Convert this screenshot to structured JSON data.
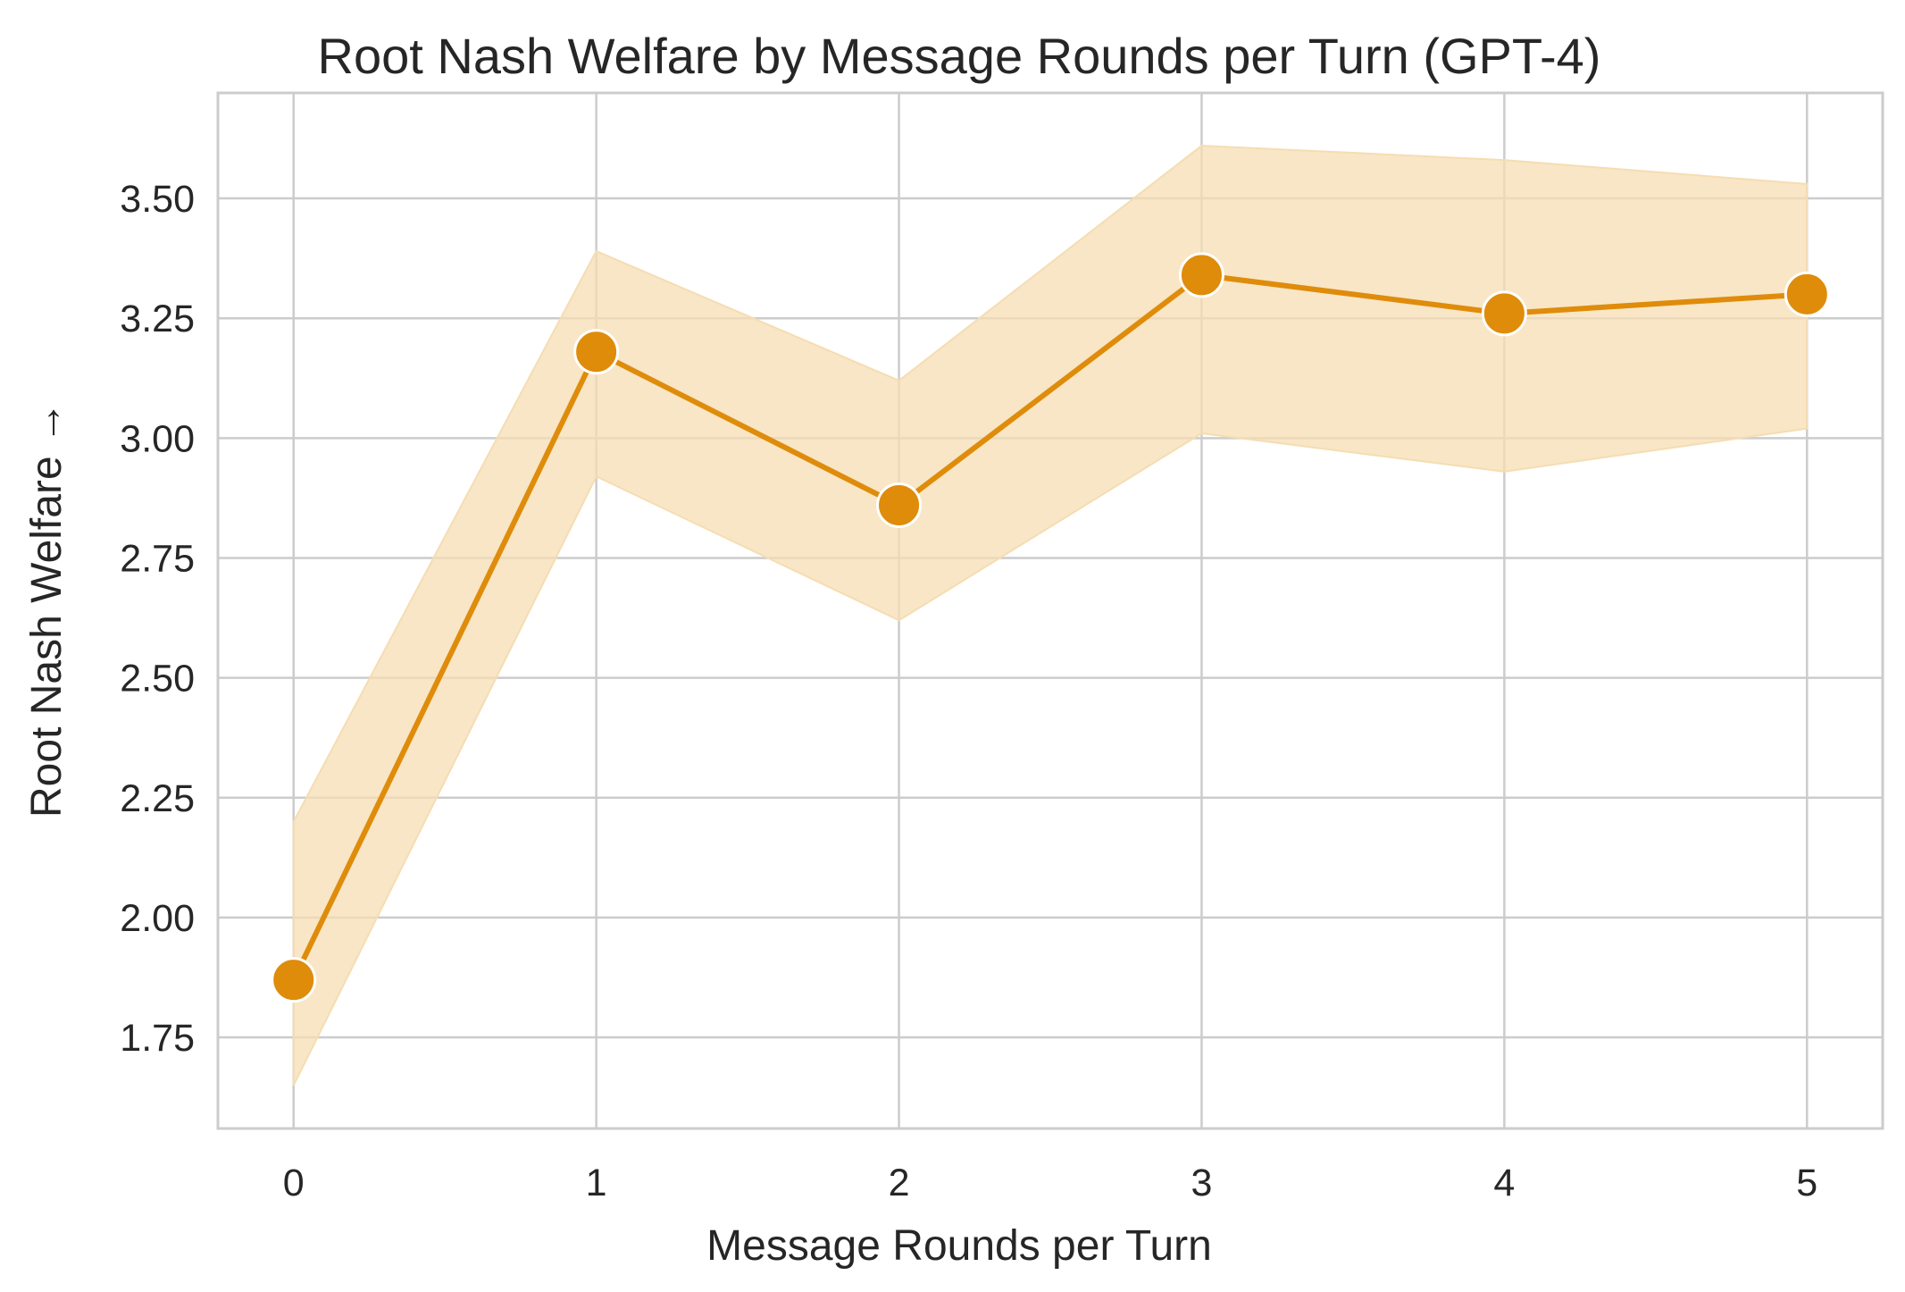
{
  "chart_data": {
    "type": "line",
    "title": "Root Nash Welfare by Message Rounds per Turn (GPT-4)",
    "xlabel": "Message Rounds per Turn",
    "ylabel": "Root Nash Welfare →",
    "x": [
      0,
      1,
      2,
      3,
      4,
      5
    ],
    "x_tick_labels": [
      "0",
      "1",
      "2",
      "3",
      "4",
      "5"
    ],
    "y_ticks": [
      1.75,
      2.0,
      2.25,
      2.5,
      2.75,
      3.0,
      3.25,
      3.5
    ],
    "y_tick_labels": [
      "1.75",
      "2.00",
      "2.25",
      "2.50",
      "2.75",
      "3.00",
      "3.25",
      "3.50"
    ],
    "xlim": [
      -0.25,
      5.25
    ],
    "ylim": [
      1.56,
      3.72
    ],
    "grid": true,
    "series": [
      {
        "values": [
          1.87,
          3.18,
          2.86,
          3.34,
          3.26,
          3.3
        ],
        "ci_lower": [
          1.65,
          2.92,
          2.62,
          3.01,
          2.93,
          3.02
        ],
        "ci_upper": [
          2.2,
          3.39,
          3.12,
          3.61,
          3.58,
          3.53
        ],
        "color": "#df8c0b",
        "band_color": "#f5ddb3",
        "marker": "circle"
      }
    ]
  }
}
